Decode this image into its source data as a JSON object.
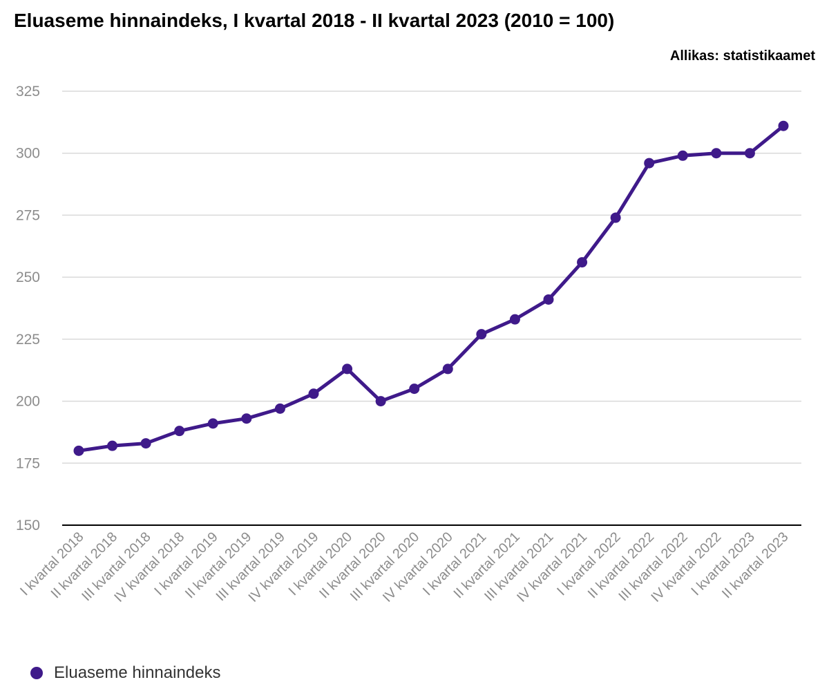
{
  "title": "Eluaseme hinnaindeks, I kvartal 2018 - II kvartal 2023 (2010 = 100)",
  "source": "Allikas: statistikaamet",
  "colors": {
    "line": "#3f1a8a",
    "grid": "#d9d9d9",
    "axis": "#000000",
    "tick_text": "#8c8c8c"
  },
  "chart_data": {
    "type": "line",
    "title": "Eluaseme hinnaindeks, I kvartal 2018 - II kvartal 2023 (2010 = 100)",
    "xlabel": "",
    "ylabel": "",
    "ylim": [
      150,
      325
    ],
    "yticks": [
      150,
      175,
      200,
      225,
      250,
      275,
      300,
      325
    ],
    "grid": true,
    "legend_position": "bottom-left",
    "categories": [
      "I kvartal 2018",
      "II kvartal 2018",
      "III kvartal 2018",
      "IV kvartal 2018",
      "I kvartal 2019",
      "II kvartal 2019",
      "III kvartal 2019",
      "IV kvartal 2019",
      "I kvartal 2020",
      "II kvartal 2020",
      "III kvartal 2020",
      "IV kvartal 2020",
      "I kvartal 2021",
      "II kvartal 2021",
      "III kvartal 2021",
      "IV kvartal 2021",
      "I kvartal 2022",
      "II kvartal 2022",
      "III kvartal 2022",
      "IV kvartal 2022",
      "I kvartal 2023",
      "II kvartal 2023"
    ],
    "series": [
      {
        "name": "Eluaseme hinnaindeks",
        "color": "#3f1a8a",
        "values": [
          180,
          182,
          183,
          188,
          191,
          193,
          197,
          203,
          213,
          200,
          205,
          213,
          227,
          233,
          241,
          256,
          274,
          296,
          299,
          300,
          300,
          311
        ]
      }
    ]
  }
}
